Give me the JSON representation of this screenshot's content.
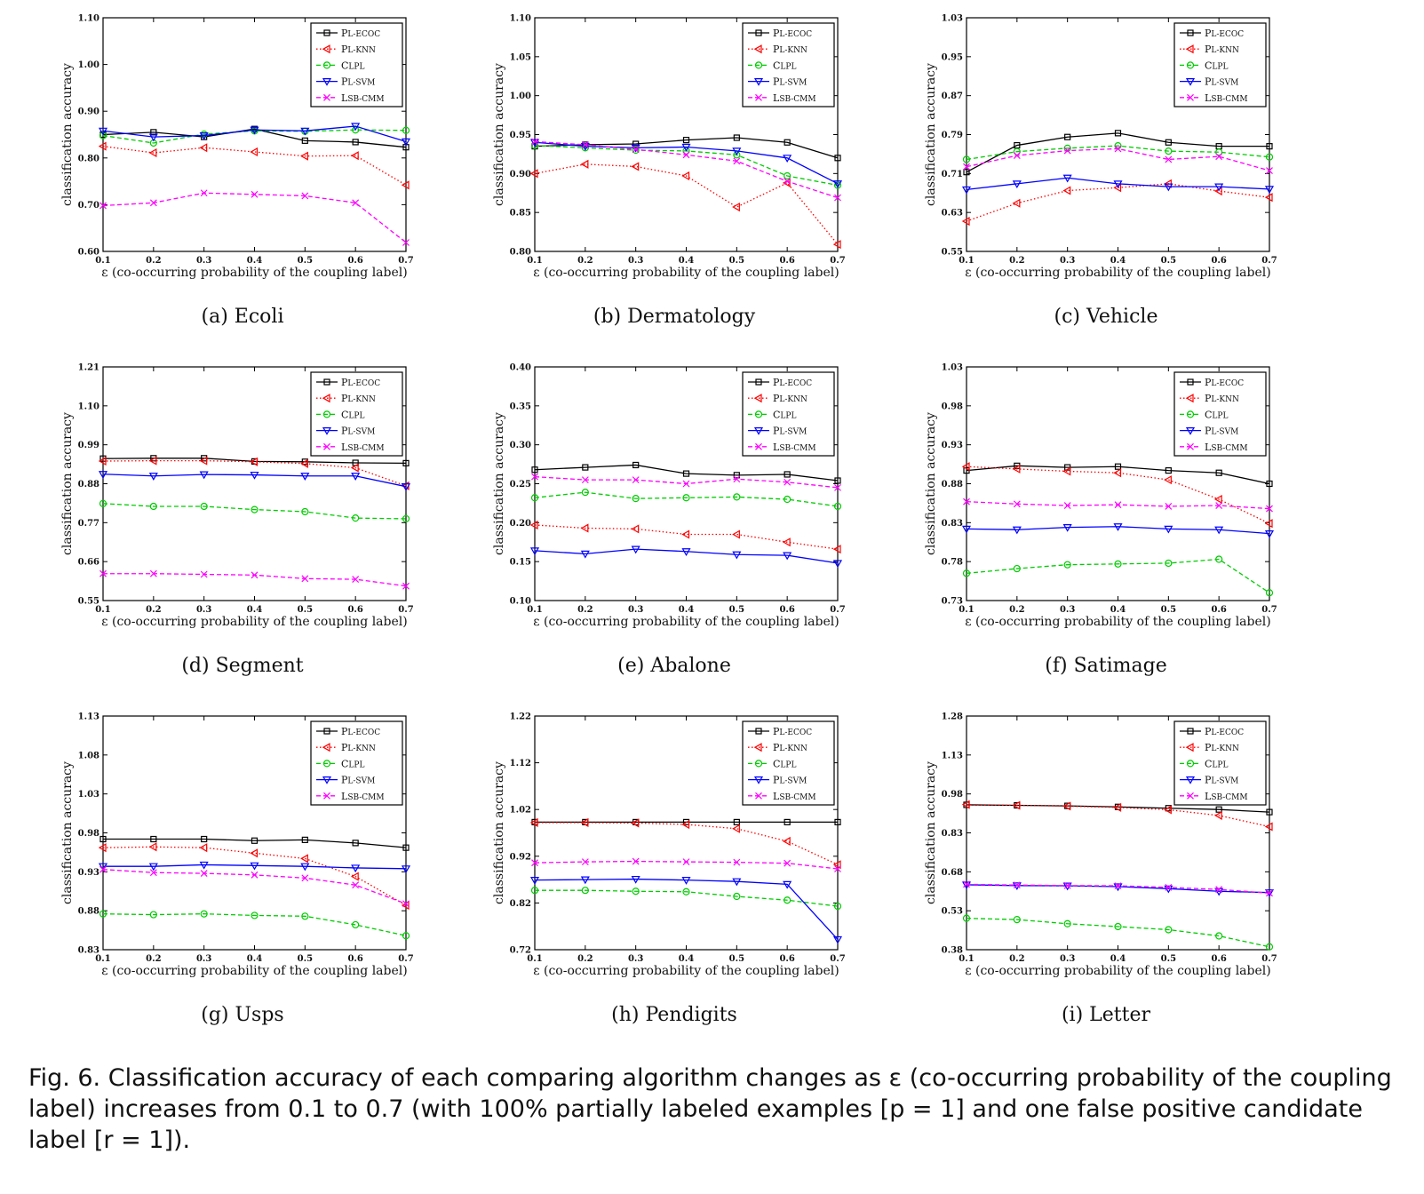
{
  "legend_labels": [
    "PL-ECOC",
    "PL-KNN",
    "CLPL",
    "PL-SVM",
    "LSB-CMM"
  ],
  "series_styles": [
    {
      "color": "#000000",
      "marker": "square",
      "dash": "solid"
    },
    {
      "color": "#ff0000",
      "marker": "triangle-left",
      "dash": "dotted"
    },
    {
      "color": "#00cc00",
      "marker": "circle",
      "dash": "dashed"
    },
    {
      "color": "#0000ff",
      "marker": "triangle-down",
      "dash": "solid"
    },
    {
      "color": "#ff00ff",
      "marker": "x",
      "dash": "dashed"
    }
  ],
  "chart_data": [
    {
      "type": "line",
      "caption": "(a)  Ecoli",
      "xlabel": "ε (co-occurring probability of the coupling label)",
      "ylabel": "classification accuracy",
      "x": [
        0.1,
        0.2,
        0.3,
        0.4,
        0.5,
        0.6,
        0.7
      ],
      "ylim": [
        0.6,
        1.1
      ],
      "yticks": [
        "0.60",
        "0.70",
        "0.80",
        "0.90",
        "1.00",
        "1.10"
      ],
      "series": [
        {
          "name": "PL-ECOC",
          "values": [
            0.85,
            0.855,
            0.845,
            0.862,
            0.837,
            0.834,
            0.823
          ]
        },
        {
          "name": "PL-KNN",
          "values": [
            0.825,
            0.811,
            0.822,
            0.813,
            0.804,
            0.805,
            0.742
          ]
        },
        {
          "name": "CLPL",
          "values": [
            0.848,
            0.832,
            0.851,
            0.858,
            0.857,
            0.86,
            0.859
          ]
        },
        {
          "name": "PL-SVM",
          "values": [
            0.858,
            0.845,
            0.848,
            0.86,
            0.858,
            0.868,
            0.835
          ]
        },
        {
          "name": "LSB-CMM",
          "values": [
            0.698,
            0.704,
            0.725,
            0.722,
            0.719,
            0.704,
            0.619
          ]
        }
      ]
    },
    {
      "type": "line",
      "caption": "(b)  Dermatology",
      "xlabel": "ε (co-occurring probability of the coupling label)",
      "ylabel": "classification accuracy",
      "x": [
        0.1,
        0.2,
        0.3,
        0.4,
        0.5,
        0.6,
        0.7
      ],
      "ylim": [
        0.8,
        1.1
      ],
      "yticks": [
        "0.80",
        "0.85",
        "0.90",
        "0.95",
        "1.00",
        "1.05",
        "1.10"
      ],
      "series": [
        {
          "name": "PL-ECOC",
          "values": [
            0.935,
            0.937,
            0.938,
            0.943,
            0.946,
            0.94,
            0.92
          ]
        },
        {
          "name": "PL-KNN",
          "values": [
            0.9,
            0.912,
            0.909,
            0.897,
            0.857,
            0.888,
            0.809
          ]
        },
        {
          "name": "CLPL",
          "values": [
            0.936,
            0.933,
            0.93,
            0.929,
            0.924,
            0.897,
            0.885
          ]
        },
        {
          "name": "PL-SVM",
          "values": [
            0.94,
            0.935,
            0.933,
            0.934,
            0.929,
            0.92,
            0.887
          ]
        },
        {
          "name": "LSB-CMM",
          "values": [
            0.941,
            0.937,
            0.931,
            0.924,
            0.916,
            0.89,
            0.869
          ]
        }
      ]
    },
    {
      "type": "line",
      "caption": "(c)  Vehicle",
      "xlabel": "ε (co-occurring probability of the coupling label)",
      "ylabel": "classification accuracy",
      "x": [
        0.1,
        0.2,
        0.3,
        0.4,
        0.5,
        0.6,
        0.7
      ],
      "ylim": [
        0.55,
        1.03
      ],
      "yticks": [
        "0.55",
        "0.63",
        "0.71",
        "0.79",
        "0.87",
        "0.95",
        "1.03"
      ],
      "series": [
        {
          "name": "PL-ECOC",
          "values": [
            0.713,
            0.768,
            0.785,
            0.793,
            0.774,
            0.766,
            0.766
          ]
        },
        {
          "name": "PL-KNN",
          "values": [
            0.612,
            0.649,
            0.675,
            0.681,
            0.689,
            0.674,
            0.661
          ]
        },
        {
          "name": "CLPL",
          "values": [
            0.739,
            0.755,
            0.762,
            0.767,
            0.756,
            0.754,
            0.744
          ]
        },
        {
          "name": "PL-SVM",
          "values": [
            0.677,
            0.689,
            0.701,
            0.689,
            0.683,
            0.683,
            0.678
          ]
        },
        {
          "name": "LSB-CMM",
          "values": [
            0.724,
            0.747,
            0.757,
            0.761,
            0.739,
            0.745,
            0.716
          ]
        }
      ]
    },
    {
      "type": "line",
      "caption": "(d)  Segment",
      "xlabel": "ε (co-occurring probability of the coupling label)",
      "ylabel": "classification accuracy",
      "x": [
        0.1,
        0.2,
        0.3,
        0.4,
        0.5,
        0.6,
        0.7
      ],
      "ylim": [
        0.55,
        1.21
      ],
      "yticks": [
        "0.55",
        "0.66",
        "0.77",
        "0.88",
        "0.99",
        "1.10",
        "1.21"
      ],
      "series": [
        {
          "name": "PL-ECOC",
          "values": [
            0.951,
            0.952,
            0.952,
            0.943,
            0.942,
            0.939,
            0.938
          ]
        },
        {
          "name": "PL-KNN",
          "values": [
            0.944,
            0.945,
            0.945,
            0.942,
            0.937,
            0.925,
            0.874
          ]
        },
        {
          "name": "CLPL",
          "values": [
            0.824,
            0.816,
            0.816,
            0.807,
            0.801,
            0.783,
            0.781
          ]
        },
        {
          "name": "PL-SVM",
          "values": [
            0.907,
            0.902,
            0.906,
            0.905,
            0.902,
            0.902,
            0.872
          ]
        },
        {
          "name": "LSB-CMM",
          "values": [
            0.626,
            0.626,
            0.624,
            0.622,
            0.612,
            0.61,
            0.591
          ]
        }
      ]
    },
    {
      "type": "line",
      "caption": "(e)  Abalone",
      "xlabel": "ε (co-occurring probability of the coupling label)",
      "ylabel": "classification accuracy",
      "x": [
        0.1,
        0.2,
        0.3,
        0.4,
        0.5,
        0.6,
        0.7
      ],
      "ylim": [
        0.1,
        0.4
      ],
      "yticks": [
        "0.10",
        "0.15",
        "0.20",
        "0.25",
        "0.30",
        "0.35",
        "0.40"
      ],
      "series": [
        {
          "name": "PL-ECOC",
          "values": [
            0.268,
            0.271,
            0.274,
            0.263,
            0.261,
            0.262,
            0.254
          ]
        },
        {
          "name": "PL-KNN",
          "values": [
            0.197,
            0.193,
            0.192,
            0.185,
            0.185,
            0.175,
            0.166
          ]
        },
        {
          "name": "CLPL",
          "values": [
            0.232,
            0.239,
            0.231,
            0.232,
            0.233,
            0.23,
            0.221
          ]
        },
        {
          "name": "PL-SVM",
          "values": [
            0.164,
            0.16,
            0.166,
            0.163,
            0.159,
            0.158,
            0.148
          ]
        },
        {
          "name": "LSB-CMM",
          "values": [
            0.259,
            0.255,
            0.255,
            0.25,
            0.256,
            0.252,
            0.245
          ]
        }
      ]
    },
    {
      "type": "line",
      "caption": "(f)  Satimage",
      "xlabel": "ε (co-occurring probability of the coupling label)",
      "ylabel": "classification accuracy",
      "x": [
        0.1,
        0.2,
        0.3,
        0.4,
        0.5,
        0.6,
        0.7
      ],
      "ylim": [
        0.73,
        1.03
      ],
      "yticks": [
        "0.73",
        "0.78",
        "0.83",
        "0.88",
        "0.93",
        "0.98",
        "1.03"
      ],
      "series": [
        {
          "name": "PL-ECOC",
          "values": [
            0.897,
            0.903,
            0.901,
            0.902,
            0.897,
            0.894,
            0.88
          ]
        },
        {
          "name": "PL-KNN",
          "values": [
            0.902,
            0.899,
            0.896,
            0.894,
            0.885,
            0.86,
            0.829
          ]
        },
        {
          "name": "CLPL",
          "values": [
            0.765,
            0.771,
            0.776,
            0.777,
            0.778,
            0.783,
            0.74
          ]
        },
        {
          "name": "PL-SVM",
          "values": [
            0.822,
            0.821,
            0.824,
            0.825,
            0.822,
            0.821,
            0.816
          ]
        },
        {
          "name": "LSB-CMM",
          "values": [
            0.857,
            0.854,
            0.852,
            0.853,
            0.851,
            0.852,
            0.848
          ]
        }
      ]
    },
    {
      "type": "line",
      "caption": "(g)  Usps",
      "xlabel": "ε (co-occurring probability of the coupling label)",
      "ylabel": "classification accuracy",
      "x": [
        0.1,
        0.2,
        0.3,
        0.4,
        0.5,
        0.6,
        0.7
      ],
      "ylim": [
        0.83,
        1.13
      ],
      "yticks": [
        "0.83",
        "0.88",
        "0.93",
        "0.98",
        "1.03",
        "1.08",
        "1.13"
      ],
      "series": [
        {
          "name": "PL-ECOC",
          "values": [
            0.972,
            0.972,
            0.972,
            0.97,
            0.971,
            0.967,
            0.961
          ]
        },
        {
          "name": "PL-KNN",
          "values": [
            0.961,
            0.962,
            0.961,
            0.954,
            0.947,
            0.924,
            0.887
          ]
        },
        {
          "name": "CLPL",
          "values": [
            0.876,
            0.875,
            0.876,
            0.874,
            0.873,
            0.862,
            0.848
          ]
        },
        {
          "name": "PL-SVM",
          "values": [
            0.937,
            0.937,
            0.939,
            0.938,
            0.937,
            0.935,
            0.934
          ]
        },
        {
          "name": "LSB-CMM",
          "values": [
            0.933,
            0.929,
            0.928,
            0.926,
            0.922,
            0.913,
            0.889
          ]
        }
      ]
    },
    {
      "type": "line",
      "caption": "(h)  Pendigits",
      "xlabel": "ε (co-occurring probability of the coupling label)",
      "ylabel": "classification accuracy",
      "x": [
        0.1,
        0.2,
        0.3,
        0.4,
        0.5,
        0.6,
        0.7
      ],
      "ylim": [
        0.72,
        1.22
      ],
      "yticks": [
        "0.72",
        "0.82",
        "0.92",
        "1.02",
        "1.12",
        "1.22"
      ],
      "series": [
        {
          "name": "PL-ECOC",
          "values": [
            0.993,
            0.993,
            0.993,
            0.993,
            0.993,
            0.993,
            0.993
          ]
        },
        {
          "name": "PL-KNN",
          "values": [
            0.992,
            0.992,
            0.991,
            0.988,
            0.979,
            0.952,
            0.902
          ]
        },
        {
          "name": "CLPL",
          "values": [
            0.847,
            0.847,
            0.845,
            0.844,
            0.834,
            0.826,
            0.813
          ]
        },
        {
          "name": "PL-SVM",
          "values": [
            0.869,
            0.87,
            0.871,
            0.869,
            0.866,
            0.86,
            0.742
          ]
        },
        {
          "name": "LSB-CMM",
          "values": [
            0.906,
            0.908,
            0.909,
            0.908,
            0.907,
            0.905,
            0.893
          ]
        }
      ]
    },
    {
      "type": "line",
      "caption": "(i)  Letter",
      "xlabel": "ε (co-occurring probability of the coupling label)",
      "ylabel": "classification accuracy",
      "x": [
        0.1,
        0.2,
        0.3,
        0.4,
        0.5,
        0.6,
        0.7
      ],
      "ylim": [
        0.38,
        1.28
      ],
      "yticks": [
        "0.38",
        "0.53",
        "0.68",
        "0.83",
        "0.98",
        "1.13",
        "1.28"
      ],
      "series": [
        {
          "name": "PL-ECOC",
          "values": [
            0.938,
            0.936,
            0.934,
            0.93,
            0.925,
            0.92,
            0.91
          ]
        },
        {
          "name": "PL-KNN",
          "values": [
            0.939,
            0.936,
            0.933,
            0.928,
            0.919,
            0.897,
            0.854
          ]
        },
        {
          "name": "CLPL",
          "values": [
            0.501,
            0.496,
            0.48,
            0.469,
            0.457,
            0.433,
            0.391
          ]
        },
        {
          "name": "PL-SVM",
          "values": [
            0.63,
            0.627,
            0.626,
            0.623,
            0.615,
            0.605,
            0.6
          ]
        },
        {
          "name": "LSB-CMM",
          "values": [
            0.632,
            0.629,
            0.627,
            0.626,
            0.62,
            0.612,
            0.598
          ]
        }
      ]
    }
  ],
  "figure_caption": "Fig. 6.  Classification accuracy of each comparing algorithm changes as ε (co-occurring probability of the coupling label) increases from 0.1 to 0.7 (with 100% partially labeled examples [p = 1] and one false positive candidate label [r = 1])."
}
